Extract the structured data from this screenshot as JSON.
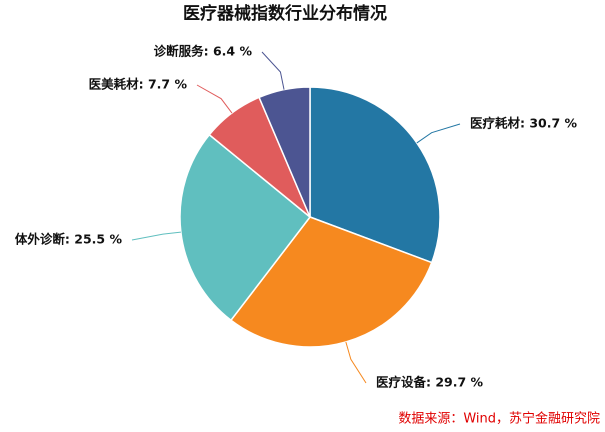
{
  "chart_data": {
    "type": "pie",
    "title": "医疗器械指数行业分布情况",
    "values": [
      30.7,
      29.7,
      25.5,
      7.7,
      6.4
    ],
    "value_labels": [
      "医疗耗材: 30.7 %",
      "医疗设备: 29.7 %",
      "体外诊断: 25.5 %",
      "医美耗材: 7.7 %",
      "诊断服务: 6.4 %"
    ],
    "colors": [
      "#2377a4",
      "#f6891f",
      "#60bfbf",
      "#e05c5c",
      "#4c5592"
    ],
    "source": "数据来源：Wind，苏宁金融研究院"
  }
}
